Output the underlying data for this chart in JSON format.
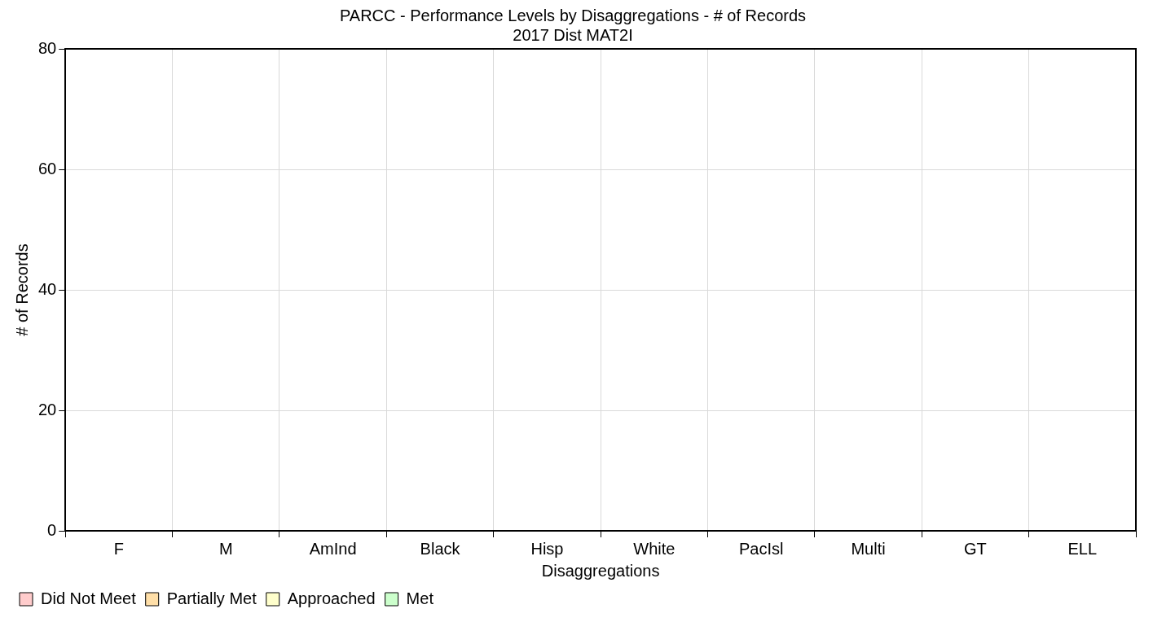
{
  "chart_data": {
    "type": "bar",
    "title": "PARCC - Performance Levels by Disaggregations - # of Records",
    "subtitle": "2017 Dist MAT2I",
    "xlabel": "Disaggregations",
    "ylabel": "# of Records",
    "categories": [
      "F",
      "M",
      "AmInd",
      "Black",
      "Hisp",
      "White",
      "PacIsl",
      "Multi",
      "GT",
      "ELL"
    ],
    "series": [
      {
        "name": "Did Not Meet",
        "color": "#ffcccc",
        "values": [
          0,
          0,
          0,
          0,
          0,
          0,
          0,
          0,
          0,
          0
        ]
      },
      {
        "name": "Partially Met",
        "color": "#ffdfa8",
        "values": [
          0,
          0,
          0,
          0,
          0,
          0,
          0,
          0,
          0,
          0
        ]
      },
      {
        "name": "Approached",
        "color": "#ffffcc",
        "values": [
          0,
          0,
          0,
          0,
          0,
          0,
          0,
          0,
          0,
          0
        ]
      },
      {
        "name": "Met",
        "color": "#ccffcc",
        "values": [
          0,
          0,
          0,
          0,
          0,
          0,
          0,
          0,
          0,
          0
        ]
      }
    ],
    "ylim": [
      0,
      80
    ],
    "yticks": [
      0,
      20,
      40,
      60,
      80
    ],
    "grid": true,
    "legend": "bottom left"
  }
}
